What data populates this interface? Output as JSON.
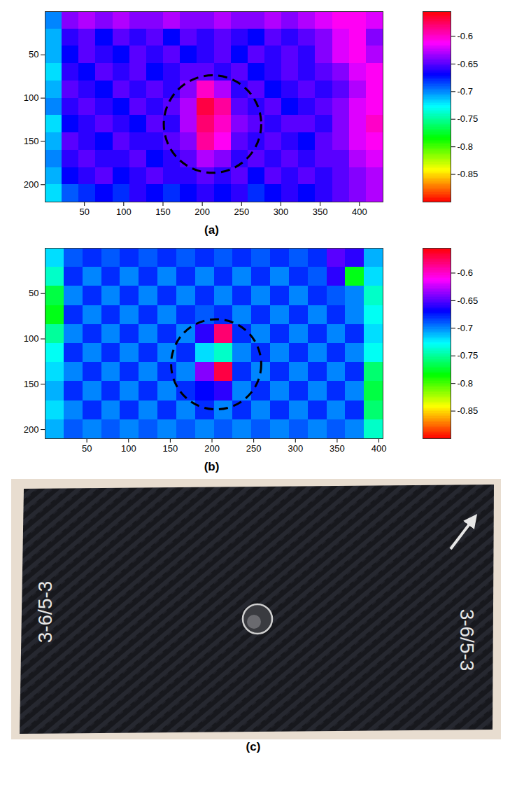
{
  "chart_data": [
    {
      "type": "heatmap",
      "panel": "(a)",
      "xlim": [
        0,
        430
      ],
      "xticks": [
        50,
        100,
        150,
        200,
        250,
        300,
        350,
        400
      ],
      "ylim": [
        0,
        220
      ],
      "yticks": [
        50,
        100,
        150,
        200
      ],
      "x_bins": [
        0,
        21.5,
        43,
        64.5,
        86,
        107.5,
        129,
        150.5,
        172,
        193.5,
        215,
        236.5,
        258,
        279.5,
        301,
        322.5,
        344,
        365.5,
        387,
        408.5,
        430
      ],
      "y_bins": [
        0,
        20,
        40,
        60,
        80,
        100,
        120,
        140,
        160,
        180,
        200,
        220
      ],
      "values": [
        [
          -0.7,
          -0.64,
          -0.63,
          -0.64,
          -0.63,
          -0.64,
          -0.64,
          -0.63,
          -0.64,
          -0.64,
          -0.63,
          -0.64,
          -0.64,
          -0.63,
          -0.64,
          -0.63,
          -0.62,
          -0.61,
          -0.61,
          -0.62
        ],
        [
          -0.71,
          -0.66,
          -0.65,
          -0.67,
          -0.65,
          -0.66,
          -0.65,
          -0.67,
          -0.65,
          -0.66,
          -0.65,
          -0.66,
          -0.67,
          -0.65,
          -0.66,
          -0.65,
          -0.64,
          -0.62,
          -0.61,
          -0.64
        ],
        [
          -0.71,
          -0.67,
          -0.65,
          -0.66,
          -0.67,
          -0.65,
          -0.66,
          -0.65,
          -0.67,
          -0.66,
          -0.65,
          -0.67,
          -0.65,
          -0.66,
          -0.65,
          -0.66,
          -0.64,
          -0.62,
          -0.61,
          -0.63
        ],
        [
          -0.72,
          -0.66,
          -0.67,
          -0.65,
          -0.66,
          -0.65,
          -0.67,
          -0.66,
          -0.65,
          -0.65,
          -0.66,
          -0.65,
          -0.67,
          -0.66,
          -0.65,
          -0.66,
          -0.65,
          -0.64,
          -0.62,
          -0.61
        ],
        [
          -0.71,
          -0.65,
          -0.66,
          -0.67,
          -0.65,
          -0.66,
          -0.65,
          -0.66,
          -0.64,
          -0.6,
          -0.63,
          -0.66,
          -0.65,
          -0.67,
          -0.66,
          -0.65,
          -0.66,
          -0.65,
          -0.63,
          -0.61
        ],
        [
          -0.7,
          -0.66,
          -0.65,
          -0.66,
          -0.67,
          -0.65,
          -0.66,
          -0.65,
          -0.63,
          -0.57,
          -0.59,
          -0.65,
          -0.66,
          -0.65,
          -0.67,
          -0.66,
          -0.65,
          -0.64,
          -0.62,
          -0.61
        ],
        [
          -0.72,
          -0.67,
          -0.66,
          -0.65,
          -0.66,
          -0.67,
          -0.65,
          -0.66,
          -0.63,
          -0.58,
          -0.6,
          -0.64,
          -0.65,
          -0.66,
          -0.65,
          -0.65,
          -0.66,
          -0.64,
          -0.62,
          -0.6
        ],
        [
          -0.71,
          -0.65,
          -0.66,
          -0.67,
          -0.65,
          -0.66,
          -0.66,
          -0.65,
          -0.64,
          -0.59,
          -0.61,
          -0.65,
          -0.66,
          -0.65,
          -0.66,
          -0.67,
          -0.65,
          -0.64,
          -0.62,
          -0.61
        ],
        [
          -0.7,
          -0.66,
          -0.65,
          -0.66,
          -0.66,
          -0.65,
          -0.67,
          -0.66,
          -0.65,
          -0.63,
          -0.64,
          -0.66,
          -0.65,
          -0.66,
          -0.65,
          -0.66,
          -0.65,
          -0.65,
          -0.63,
          -0.62
        ],
        [
          -0.71,
          -0.67,
          -0.66,
          -0.65,
          -0.67,
          -0.66,
          -0.65,
          -0.66,
          -0.66,
          -0.65,
          -0.66,
          -0.65,
          -0.67,
          -0.65,
          -0.66,
          -0.65,
          -0.66,
          -0.65,
          -0.64,
          -0.63
        ],
        [
          -0.72,
          -0.69,
          -0.68,
          -0.67,
          -0.68,
          -0.66,
          -0.67,
          -0.68,
          -0.67,
          -0.66,
          -0.67,
          -0.66,
          -0.68,
          -0.67,
          -0.66,
          -0.67,
          -0.66,
          -0.65,
          -0.64,
          -0.63
        ]
      ],
      "highlight": {
        "x": 213,
        "y": 130,
        "radius": 62
      },
      "colorbar": {
        "range": [
          -0.9,
          -0.555
        ],
        "ticks": [
          -0.85,
          -0.8,
          -0.75,
          -0.7,
          -0.65,
          -0.6
        ],
        "colors": [
          "#ff0000",
          "#ffff00",
          "#00ff00",
          "#00ffff",
          "#0000ff",
          "#ff00ff",
          "#ff0000"
        ]
      }
    },
    {
      "type": "heatmap",
      "panel": "(b)",
      "xlim": [
        0,
        405
      ],
      "xticks": [
        50,
        100,
        150,
        200,
        250,
        300,
        350,
        400
      ],
      "ylim": [
        0,
        210
      ],
      "yticks": [
        50,
        100,
        150,
        200
      ],
      "x_bins": [
        0,
        22.5,
        45,
        67.5,
        90,
        112.5,
        135,
        157.5,
        180,
        202.5,
        225,
        247.5,
        270,
        292.5,
        315,
        337.5,
        360,
        382.5,
        405
      ],
      "y_bins": [
        0,
        21,
        42,
        63,
        84,
        105,
        126,
        147,
        168,
        189,
        210
      ],
      "values": [
        [
          -0.72,
          -0.69,
          -0.68,
          -0.69,
          -0.68,
          -0.69,
          -0.68,
          -0.69,
          -0.68,
          -0.69,
          -0.68,
          -0.69,
          -0.68,
          -0.69,
          -0.68,
          -0.65,
          -0.66,
          -0.71
        ],
        [
          -0.74,
          -0.68,
          -0.7,
          -0.68,
          -0.7,
          -0.68,
          -0.7,
          -0.68,
          -0.7,
          -0.68,
          -0.7,
          -0.68,
          -0.7,
          -0.68,
          -0.69,
          -0.66,
          -0.78,
          -0.72
        ],
        [
          -0.77,
          -0.7,
          -0.68,
          -0.7,
          -0.68,
          -0.7,
          -0.68,
          -0.7,
          -0.68,
          -0.7,
          -0.68,
          -0.7,
          -0.68,
          -0.7,
          -0.68,
          -0.69,
          -0.7,
          -0.74
        ],
        [
          -0.78,
          -0.68,
          -0.7,
          -0.68,
          -0.7,
          -0.68,
          -0.7,
          -0.68,
          -0.69,
          -0.68,
          -0.7,
          -0.68,
          -0.7,
          -0.68,
          -0.7,
          -0.68,
          -0.7,
          -0.73
        ],
        [
          -0.75,
          -0.7,
          -0.68,
          -0.7,
          -0.68,
          -0.7,
          -0.68,
          -0.7,
          -0.66,
          -0.58,
          -0.68,
          -0.7,
          -0.68,
          -0.7,
          -0.68,
          -0.7,
          -0.68,
          -0.72
        ],
        [
          -0.73,
          -0.68,
          -0.7,
          -0.68,
          -0.7,
          -0.68,
          -0.7,
          -0.68,
          -0.72,
          -0.74,
          -0.7,
          -0.68,
          -0.7,
          -0.68,
          -0.7,
          -0.68,
          -0.7,
          -0.73
        ],
        [
          -0.72,
          -0.7,
          -0.68,
          -0.7,
          -0.68,
          -0.7,
          -0.68,
          -0.7,
          -0.64,
          -0.57,
          -0.68,
          -0.7,
          -0.68,
          -0.7,
          -0.68,
          -0.7,
          -0.68,
          -0.76
        ],
        [
          -0.71,
          -0.68,
          -0.7,
          -0.68,
          -0.7,
          -0.68,
          -0.7,
          -0.68,
          -0.67,
          -0.66,
          -0.7,
          -0.68,
          -0.7,
          -0.68,
          -0.7,
          -0.68,
          -0.7,
          -0.77
        ],
        [
          -0.72,
          -0.7,
          -0.68,
          -0.7,
          -0.68,
          -0.7,
          -0.68,
          -0.7,
          -0.68,
          -0.7,
          -0.68,
          -0.7,
          -0.68,
          -0.7,
          -0.68,
          -0.7,
          -0.68,
          -0.76
        ],
        [
          -0.71,
          -0.69,
          -0.7,
          -0.69,
          -0.7,
          -0.69,
          -0.7,
          -0.69,
          -0.7,
          -0.69,
          -0.7,
          -0.69,
          -0.7,
          -0.69,
          -0.7,
          -0.69,
          -0.7,
          -0.74
        ]
      ],
      "highlight": {
        "x": 205,
        "y": 128,
        "radius": 54
      },
      "colorbar": {
        "range": [
          -0.9,
          -0.555
        ],
        "ticks": [
          -0.85,
          -0.8,
          -0.75,
          -0.7,
          -0.65,
          -0.6
        ],
        "colors": [
          "#ff0000",
          "#ffff00",
          "#00ff00",
          "#00ffff",
          "#0000ff",
          "#ff00ff",
          "#ff0000"
        ]
      }
    }
  ],
  "photo": {
    "panel": "(c)",
    "labels": [
      "3-6/5-3",
      "3-6/5-3"
    ]
  }
}
